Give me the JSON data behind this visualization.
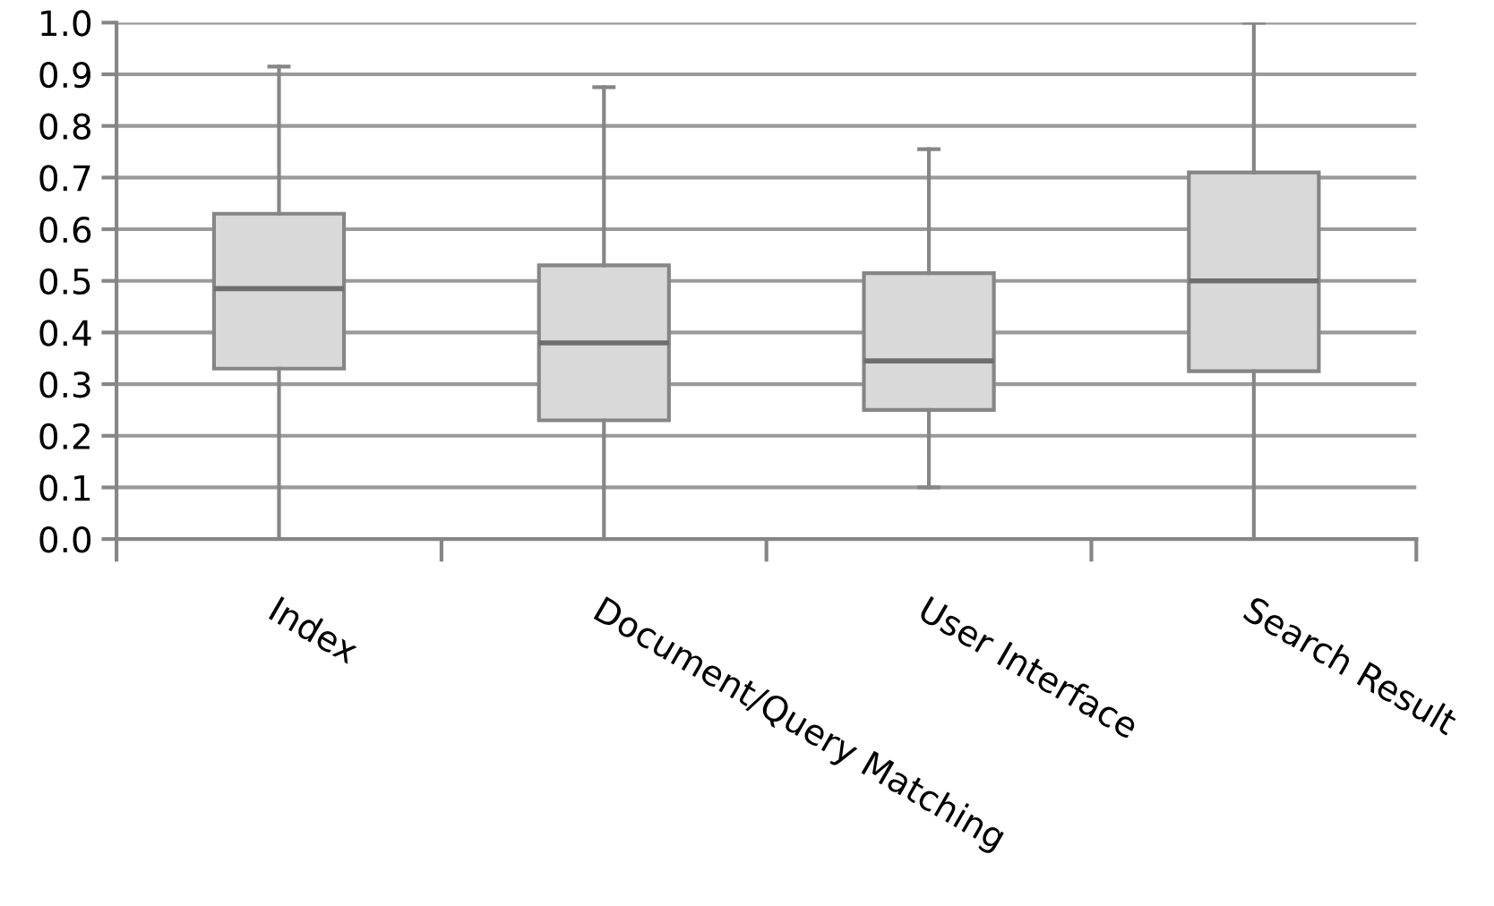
{
  "chart_data": {
    "type": "box",
    "categories": [
      "Index",
      "Document/Query Matching",
      "User Interface",
      "Search Result"
    ],
    "boxes": [
      {
        "low": 0.0,
        "q1": 0.33,
        "median": 0.485,
        "q3": 0.63,
        "high": 0.915
      },
      {
        "low": 0.0,
        "q1": 0.23,
        "median": 0.38,
        "q3": 0.53,
        "high": 0.875
      },
      {
        "low": 0.1,
        "q1": 0.25,
        "median": 0.345,
        "q3": 0.515,
        "high": 0.755
      },
      {
        "low": 0.0,
        "q1": 0.325,
        "median": 0.5,
        "q3": 0.71,
        "high": 1.0
      }
    ],
    "color": "#d9d9d9",
    "ylim": [
      0,
      1
    ],
    "yticks": [
      {
        "value": 0,
        "label": "0.0"
      },
      {
        "value": 0.1,
        "label": "0.1"
      },
      {
        "value": 0.2,
        "label": "0.2"
      },
      {
        "value": 0.3,
        "label": "0.3"
      },
      {
        "value": 0.4,
        "label": "0.4"
      },
      {
        "value": 0.5,
        "label": "0.5"
      },
      {
        "value": 0.6,
        "label": "0.6"
      },
      {
        "value": 0.7,
        "label": "0.7"
      },
      {
        "value": 0.8,
        "label": "0.8"
      },
      {
        "value": 0.9,
        "label": "0.9"
      },
      {
        "value": 1,
        "label": "1.0"
      }
    ],
    "grid": "y"
  }
}
